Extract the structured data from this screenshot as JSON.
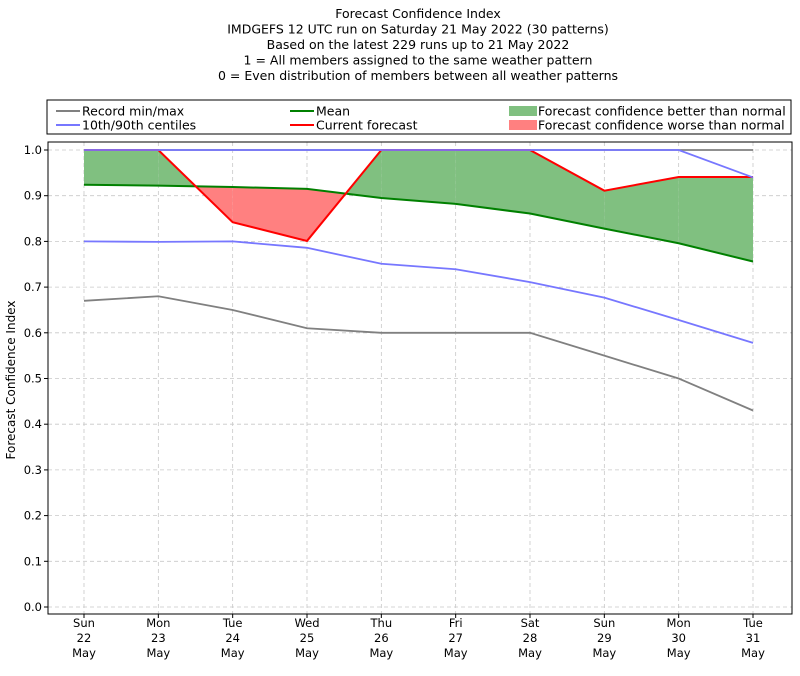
{
  "chart_data": {
    "type": "line",
    "title_lines": [
      "Forecast Confidence Index",
      "IMDGEFS 12 UTC run on Saturday 21 May 2022 (30 patterns)",
      "Based on the latest 229 runs up to 21 May 2022",
      "1 = All members assigned to the same weather pattern",
      "0 = Even distribution of members between all weather patterns"
    ],
    "ylabel": "Forecast Confidence Index",
    "ylim": [
      0,
      1
    ],
    "yticks": [
      "0.0",
      "0.1",
      "0.2",
      "0.3",
      "0.4",
      "0.5",
      "0.6",
      "0.7",
      "0.8",
      "0.9",
      "1.0"
    ],
    "grid": true,
    "legend_position": "top",
    "categories": [
      {
        "day": "Sun",
        "date": "22",
        "month": "May"
      },
      {
        "day": "Mon",
        "date": "23",
        "month": "May"
      },
      {
        "day": "Tue",
        "date": "24",
        "month": "May"
      },
      {
        "day": "Wed",
        "date": "25",
        "month": "May"
      },
      {
        "day": "Thu",
        "date": "26",
        "month": "May"
      },
      {
        "day": "Fri",
        "date": "27",
        "month": "May"
      },
      {
        "day": "Sat",
        "date": "28",
        "month": "May"
      },
      {
        "day": "Sun",
        "date": "29",
        "month": "May"
      },
      {
        "day": "Mon",
        "date": "30",
        "month": "May"
      },
      {
        "day": "Tue",
        "date": "31",
        "month": "May"
      }
    ],
    "series": [
      {
        "key": "record_max",
        "color": "#808080",
        "values": [
          1.0,
          1.0,
          1.0,
          1.0,
          1.0,
          1.0,
          1.0,
          1.0,
          1.0,
          1.0
        ]
      },
      {
        "key": "record_min",
        "color": "#808080",
        "values": [
          0.67,
          0.68,
          0.65,
          0.61,
          0.6,
          0.6,
          0.6,
          0.55,
          0.5,
          0.43
        ]
      },
      {
        "key": "p90",
        "color": "#7777ff",
        "values": [
          1.0,
          1.0,
          1.0,
          1.0,
          1.0,
          1.0,
          1.0,
          1.0,
          1.0,
          0.94
        ]
      },
      {
        "key": "p10",
        "color": "#7777ff",
        "values": [
          0.8,
          0.799,
          0.8,
          0.786,
          0.751,
          0.739,
          0.711,
          0.677,
          0.628,
          0.578
        ]
      },
      {
        "key": "mean",
        "color": "#008000",
        "values": [
          0.924,
          0.922,
          0.919,
          0.915,
          0.895,
          0.882,
          0.861,
          0.828,
          0.796,
          0.756
        ]
      },
      {
        "key": "current",
        "color": "#ff0000",
        "values": [
          1.0,
          1.0,
          0.842,
          0.801,
          1.0,
          1.0,
          1.0,
          0.911,
          0.941,
          0.941
        ]
      }
    ],
    "fill_better_color": "#80c080",
    "fill_worse_color": "#ff8080",
    "legend": [
      {
        "label": "Record min/max",
        "kind": "line",
        "color": "#808080"
      },
      {
        "label": "Mean",
        "kind": "line",
        "color": "#008000"
      },
      {
        "label": "Forecast confidence better than normal",
        "kind": "patch",
        "color": "#80c080"
      },
      {
        "label": "10th/90th centiles",
        "kind": "line",
        "color": "#7777ff"
      },
      {
        "label": "Current forecast",
        "kind": "line",
        "color": "#ff0000"
      },
      {
        "label": "Forecast confidence worse than normal",
        "kind": "patch",
        "color": "#ff8080"
      }
    ]
  }
}
